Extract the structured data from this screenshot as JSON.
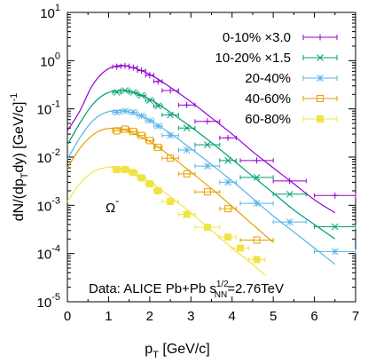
{
  "chart_data": {
    "type": "scatter",
    "xlabel": {
      "main": "p",
      "sub": "T",
      "rest": " [GeV/c]"
    },
    "ylabel": {
      "pre": "dN/(dp",
      "sub": "T",
      "post": "dy) [GeV/c]",
      "sup": "-1"
    },
    "xlim": [
      0,
      7
    ],
    "ylim": [
      1e-05,
      10
    ],
    "yscale": "log",
    "xticks": [
      0,
      1,
      2,
      3,
      4,
      5,
      6,
      7
    ],
    "yticks": [
      {
        "value": 1e-05,
        "base": "10",
        "exp": "-5"
      },
      {
        "value": 0.0001,
        "base": "10",
        "exp": "-4"
      },
      {
        "value": 0.001,
        "base": "10",
        "exp": "-3"
      },
      {
        "value": 0.01,
        "base": "10",
        "exp": "-2"
      },
      {
        "value": 0.1,
        "base": "10",
        "exp": "-1"
      },
      {
        "value": 1,
        "base": "10",
        "exp": "0"
      },
      {
        "value": 10,
        "base": "10",
        "exp": "1"
      }
    ],
    "grid": false,
    "legend_position": "top-right",
    "particle": {
      "base": "Ω",
      "sup": "-"
    },
    "annotation": {
      "pre": "Data: ALICE Pb+Pb s",
      "sup": "1/2",
      "sub": "NN",
      "post": "=2.76TeV"
    },
    "series": [
      {
        "name": "0-10% ×3.0",
        "color": "#9400d3",
        "marker": "plus",
        "x": [
          1.2,
          1.4,
          1.6,
          1.8,
          2.0,
          2.2,
          2.5,
          2.9,
          3.4,
          3.9,
          4.6,
          5.4,
          6.5
        ],
        "y": [
          0.75,
          0.78,
          0.72,
          0.62,
          0.5,
          0.37,
          0.24,
          0.12,
          0.055,
          0.025,
          0.0085,
          0.0032,
          0.0016
        ],
        "xerr": [
          0.1,
          0.1,
          0.1,
          0.1,
          0.1,
          0.1,
          0.2,
          0.2,
          0.3,
          0.2,
          0.4,
          0.4,
          0.5
        ],
        "curve": {
          "x": [
            0.0,
            0.3,
            0.6,
            0.9,
            1.2,
            1.5,
            2.0,
            2.5,
            3.0,
            3.5,
            4.0,
            4.5,
            5.0,
            5.5,
            6.0,
            6.5
          ],
          "y": [
            0.035,
            0.09,
            0.3,
            0.6,
            0.78,
            0.75,
            0.52,
            0.28,
            0.14,
            0.065,
            0.03,
            0.013,
            0.006,
            0.0028,
            0.0013,
            0.0007
          ]
        }
      },
      {
        "name": "10-20% ×1.5",
        "color": "#009e73",
        "marker": "cross",
        "x": [
          1.2,
          1.4,
          1.6,
          1.8,
          2.0,
          2.2,
          2.5,
          2.9,
          3.4,
          3.9,
          4.6,
          5.4,
          6.5
        ],
        "y": [
          0.22,
          0.24,
          0.22,
          0.19,
          0.15,
          0.115,
          0.075,
          0.04,
          0.018,
          0.0085,
          0.0038,
          0.0017,
          0.00036
        ],
        "xerr": [
          0.1,
          0.1,
          0.1,
          0.1,
          0.1,
          0.1,
          0.2,
          0.2,
          0.3,
          0.2,
          0.4,
          0.4,
          0.5
        ],
        "curve": {
          "x": [
            0.0,
            0.3,
            0.6,
            0.9,
            1.2,
            1.5,
            2.0,
            2.5,
            3.0,
            3.5,
            4.0,
            4.5,
            5.0,
            5.5,
            6.0,
            6.5
          ],
          "y": [
            0.018,
            0.05,
            0.12,
            0.2,
            0.24,
            0.23,
            0.16,
            0.085,
            0.042,
            0.02,
            0.009,
            0.004,
            0.0018,
            0.0008,
            0.0004,
            0.0002
          ]
        }
      },
      {
        "name": "20-40%",
        "color": "#56b4e9",
        "marker": "star",
        "x": [
          1.2,
          1.4,
          1.6,
          1.8,
          2.0,
          2.2,
          2.5,
          2.9,
          3.4,
          3.9,
          4.6,
          5.4,
          6.5
        ],
        "y": [
          0.085,
          0.09,
          0.085,
          0.072,
          0.057,
          0.044,
          0.028,
          0.014,
          0.0065,
          0.003,
          0.0011,
          0.00045,
          0.00011
        ],
        "xerr": [
          0.1,
          0.1,
          0.1,
          0.1,
          0.1,
          0.1,
          0.2,
          0.2,
          0.3,
          0.2,
          0.4,
          0.4,
          0.5
        ],
        "curve": {
          "x": [
            0.0,
            0.3,
            0.6,
            0.9,
            1.2,
            1.5,
            2.0,
            2.5,
            3.0,
            3.5,
            4.0,
            4.5,
            5.0,
            5.5,
            6.0,
            6.5
          ],
          "y": [
            0.009,
            0.025,
            0.055,
            0.082,
            0.092,
            0.086,
            0.058,
            0.031,
            0.015,
            0.007,
            0.0032,
            0.0014,
            0.0006,
            0.00028,
            0.00013,
            6e-05
          ]
        }
      },
      {
        "name": "40-60%",
        "color": "#e69f00",
        "marker": "square",
        "x": [
          1.2,
          1.4,
          1.6,
          1.8,
          2.0,
          2.2,
          2.5,
          2.9,
          3.4,
          3.9,
          4.6
        ],
        "y": [
          0.035,
          0.038,
          0.034,
          0.028,
          0.022,
          0.016,
          0.0095,
          0.0045,
          0.0019,
          0.00085,
          0.00019
        ],
        "xerr": [
          0.1,
          0.1,
          0.1,
          0.1,
          0.1,
          0.1,
          0.2,
          0.2,
          0.3,
          0.2,
          0.4
        ],
        "curve": {
          "x": [
            0.0,
            0.3,
            0.6,
            0.9,
            1.2,
            1.5,
            2.0,
            2.5,
            3.0,
            3.5,
            4.0,
            4.5,
            5.0
          ],
          "y": [
            0.006,
            0.015,
            0.028,
            0.038,
            0.039,
            0.034,
            0.021,
            0.0105,
            0.0049,
            0.0022,
            0.00095,
            0.0004,
            0.00017
          ]
        }
      },
      {
        "name": "60-80%",
        "color": "#f0e442",
        "marker": "filled-square",
        "x": [
          1.2,
          1.4,
          1.6,
          1.8,
          2.0,
          2.2,
          2.5,
          2.9,
          3.4,
          3.9,
          4.2,
          4.6
        ],
        "y": [
          0.0055,
          0.0055,
          0.0048,
          0.0037,
          0.0028,
          0.002,
          0.0012,
          0.00065,
          0.00035,
          0.00022,
          0.00013,
          7.5e-05
        ],
        "xerr": [
          0.1,
          0.1,
          0.1,
          0.1,
          0.1,
          0.1,
          0.2,
          0.2,
          0.3,
          0.2,
          0.2,
          0.2
        ],
        "curve": {
          "x": [
            0.0,
            0.3,
            0.6,
            0.9,
            1.2,
            1.5,
            2.0,
            2.5,
            3.0,
            3.5,
            4.0,
            4.5,
            4.8
          ],
          "y": [
            0.0012,
            0.0028,
            0.0048,
            0.006,
            0.0062,
            0.0052,
            0.0031,
            0.0015,
            0.0007,
            0.0003,
            0.00013,
            6e-05,
            3.5e-05
          ]
        }
      }
    ]
  }
}
